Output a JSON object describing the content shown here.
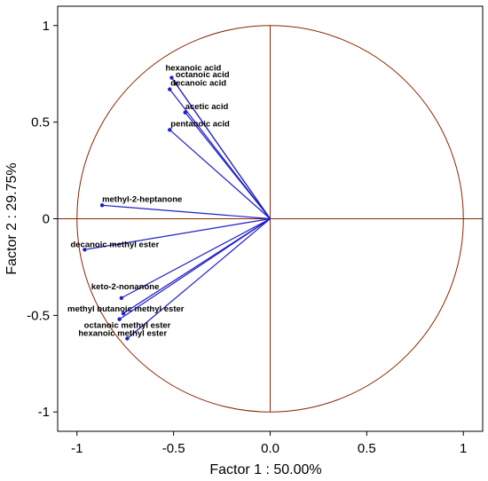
{
  "chart_data": {
    "type": "scatter",
    "subtype": "pca-correlation-circle",
    "title": "",
    "xlabel": "Factor 1 : 50.00%",
    "ylabel": "Factor 2 : 29.75%",
    "xlim": [
      -1.1,
      1.1
    ],
    "ylim": [
      -1.1,
      1.1
    ],
    "x_ticks": [
      "-1",
      "-0.5",
      "0.0",
      "0.5",
      "1"
    ],
    "y_ticks": [
      "1",
      "0.5",
      "0",
      "-0.5",
      "-1"
    ],
    "grid": false,
    "colors": {
      "circle": "#8b2500",
      "vector": "#1f1fc8",
      "axis_line": "#8b2500"
    },
    "points": [
      {
        "label": "hexanoic acid",
        "x": -0.51,
        "y": 0.73
      },
      {
        "label": "octanoic acid",
        "x": -0.49,
        "y": 0.7
      },
      {
        "label": "decanoic acid",
        "x": -0.52,
        "y": 0.67
      },
      {
        "label": "acetic acid",
        "x": -0.44,
        "y": 0.55
      },
      {
        "label": "pentanoic acid",
        "x": -0.52,
        "y": 0.46
      },
      {
        "label": "methyl-2-heptanone",
        "x": -0.87,
        "y": 0.07
      },
      {
        "label": "decanoic methyl ester",
        "x": -0.96,
        "y": -0.16
      },
      {
        "label": "keto-2-nonanone",
        "x": -0.77,
        "y": -0.41
      },
      {
        "label": "methyl butanoic methyl ester",
        "x": -0.76,
        "y": -0.49
      },
      {
        "label": "octanoic methyl ester",
        "x": -0.78,
        "y": -0.52
      },
      {
        "label": "hexanoic methyl ester",
        "x": -0.74,
        "y": -0.62
      }
    ]
  }
}
